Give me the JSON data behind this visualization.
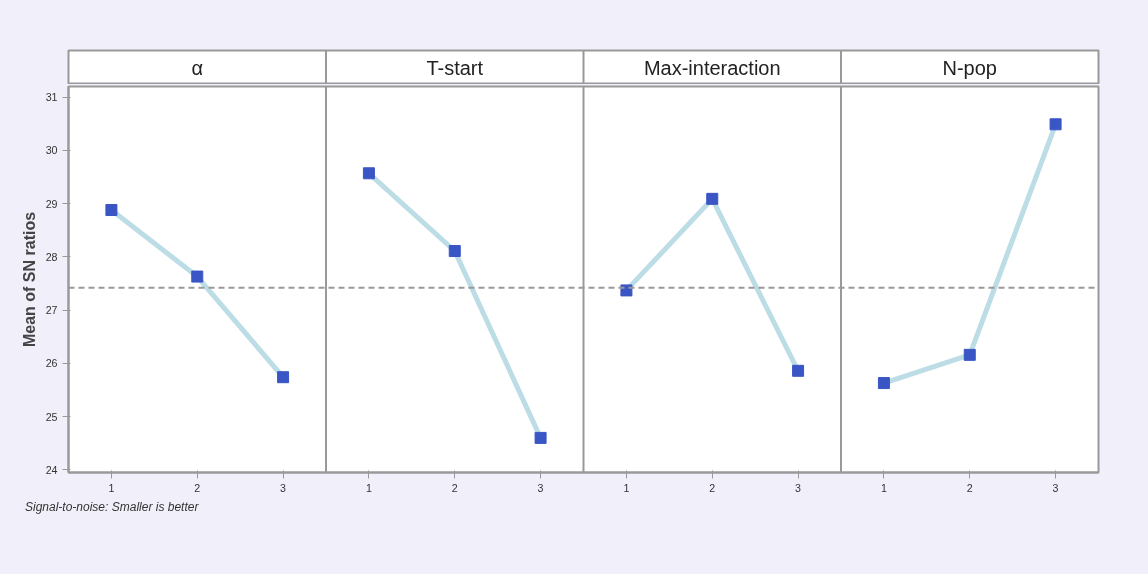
{
  "chart_data": {
    "type": "line",
    "ylabel": "Mean of SN ratios",
    "categories": [
      "1",
      "2",
      "3",
      "1",
      "2",
      "3",
      "1",
      "2",
      "3",
      "1",
      "2",
      "3"
    ],
    "series": [
      {
        "color": "#3a55c4",
        "values": [
          28.88,
          27.63,
          25.74,
          null,
          null,
          null,
          null,
          null,
          null,
          null,
          null,
          null
        ]
      },
      {
        "color": "#3a55c4",
        "values": [
          null,
          null,
          null,
          29.57,
          28.11,
          24.6,
          null,
          null,
          null,
          null,
          null,
          null
        ]
      },
      {
        "color": "#3a55c4",
        "values": [
          null,
          null,
          null,
          null,
          null,
          null,
          27.37,
          29.09,
          25.86,
          null,
          null,
          null
        ]
      },
      {
        "color": "#3a55c4",
        "values": [
          null,
          null,
          null,
          null,
          null,
          null,
          null,
          null,
          null,
          25.63,
          26.16,
          30.49
        ]
      }
    ],
    "ylim": [
      23.95,
      31.2
    ],
    "yticks": [
      24,
      25,
      26,
      27,
      28,
      29,
      30,
      31
    ],
    "marker": "square",
    "grid": false,
    "ref_lines": [
      {
        "axis": "y",
        "value": 27.42,
        "line_style": "dashed",
        "color": "#999999"
      }
    ],
    "annotations": [
      "α",
      "T-start",
      "Max-interaction",
      "N-pop",
      "Signal-to-noise: Smaller is better"
    ]
  }
}
